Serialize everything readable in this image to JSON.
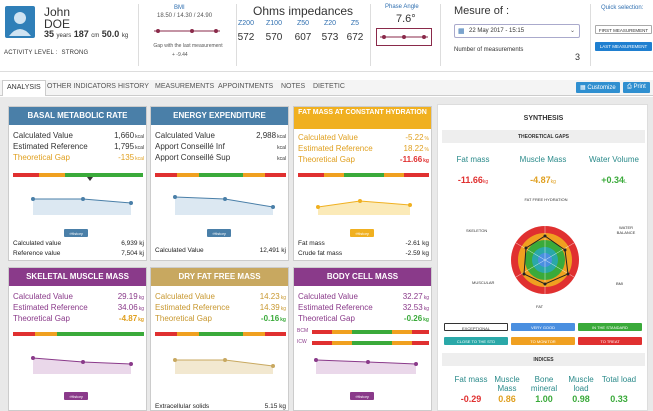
{
  "patient": {
    "first_name": "John",
    "last_name": "DOE",
    "age": "35",
    "age_unit": "years",
    "height": "187",
    "height_unit": "cm",
    "weight": "50.0",
    "weight_unit": "kg",
    "activity_label": "ACTIVITY LEVEL",
    "activity_value": "STRONG"
  },
  "bmi": {
    "label": "BMI",
    "values": "18.50 / 14.30 / 24.90",
    "gap_label": "Gap with the last measurement",
    "gap_value": "+ -9.44"
  },
  "ohms": {
    "title": "Ohms impedances",
    "items": [
      {
        "label": "Z200",
        "value": "572"
      },
      {
        "label": "Z100",
        "value": "570"
      },
      {
        "label": "Z50",
        "value": "607"
      },
      {
        "label": "Z20",
        "value": "573"
      },
      {
        "label": "Z5",
        "value": "672"
      }
    ]
  },
  "phase_angle": {
    "label": "Phase Angle",
    "value": "7.6°"
  },
  "measure": {
    "title": "Mesure of :",
    "date": "22 May 2017 - 15:15",
    "count_label": "Number of measurements",
    "count_value": "3"
  },
  "quick_selection": {
    "label": "Quick selection:",
    "first": "FIRST MEASUREMENT",
    "last": "LAST MEASUREMENT"
  },
  "tabs": [
    "ANALYSIS",
    "OTHER INDICATORS",
    "HISTORY",
    "MEASUREMENTS",
    "APPOINTMENTS",
    "NOTES",
    "DIETETIC"
  ],
  "toolbar": {
    "customize": "Customize",
    "print": "Print"
  },
  "cards": {
    "bmr": {
      "title": "BASAL METABOLIC RATE",
      "rows": [
        {
          "label": "Calculated Value",
          "value": "1,660",
          "unit": "kcal"
        },
        {
          "label": "Estimated Reference",
          "value": "1,795",
          "unit": "kcal"
        },
        {
          "label": "Theoretical Gap",
          "value": "-135",
          "unit": "kcal"
        }
      ],
      "bottom": [
        {
          "label": "Calculated value",
          "value": "6,939",
          "unit": "kj"
        },
        {
          "label": "Reference value",
          "value": "7,504",
          "unit": "kj"
        }
      ],
      "history": "History"
    },
    "ee": {
      "title": "ENERGY EXPENDITURE",
      "rows": [
        {
          "label": "Calculated Value",
          "value": "2,988",
          "unit": "kcal"
        },
        {
          "label": "Apport Conseillé Inf",
          "value": "",
          "unit": "kcal"
        },
        {
          "label": "Apport Conseillé Sup",
          "value": "",
          "unit": "kcal"
        }
      ],
      "bottom": [
        {
          "label": "Calculated Value",
          "value": "12,491",
          "unit": "kj"
        }
      ],
      "history": "History"
    },
    "fm": {
      "title": "FAT MASS AT CONSTANT HYDRATION",
      "rows": [
        {
          "label": "Calculated Value",
          "value": "-5.22",
          "unit": "%"
        },
        {
          "label": "Estimated Reference",
          "value": "18.22",
          "unit": "%"
        },
        {
          "label": "Theoretical Gap",
          "value": "-11.66",
          "unit": "kg"
        }
      ],
      "bottom": [
        {
          "label": "Fat mass",
          "value": "-2.61",
          "unit": "kg"
        },
        {
          "label": "Crude fat mass",
          "value": "-2.59",
          "unit": "kg"
        }
      ],
      "history": "History"
    },
    "smm": {
      "title": "SKELETAL MUSCLE MASS",
      "rows": [
        {
          "label": "Calculated Value",
          "value": "29.19",
          "unit": "kg"
        },
        {
          "label": "Estimated Reference",
          "value": "34.06",
          "unit": "kg"
        },
        {
          "label": "Theoretical Gap",
          "value": "-4.87",
          "unit": "kg"
        }
      ],
      "history": "History"
    },
    "dffm": {
      "title": "DRY FAT FREE MASS",
      "rows": [
        {
          "label": "Calculated Value",
          "value": "14.23",
          "unit": "kg"
        },
        {
          "label": "Estimated Reference",
          "value": "14.39",
          "unit": "kg"
        },
        {
          "label": "Theoretical Gap",
          "value": "-0.16",
          "unit": "kg"
        }
      ],
      "bottom": [
        {
          "label": "Extracellular solids",
          "value": "5.15",
          "unit": "kg"
        }
      ]
    },
    "bcm": {
      "title": "BODY CELL MASS",
      "rows": [
        {
          "label": "Calculated Value",
          "value": "32.27",
          "unit": "kg"
        },
        {
          "label": "Estimated Reference",
          "value": "32.53",
          "unit": "kg"
        },
        {
          "label": "Theoretical Gap",
          "value": "-0.26",
          "unit": "kg"
        }
      ],
      "bar_labels": [
        "BCM",
        "ICW"
      ],
      "history": "History"
    }
  },
  "synthesis": {
    "title": "SYNTHESIS",
    "gaps_title": "THEORETICAL GAPS",
    "gaps": [
      {
        "label": "Fat mass",
        "value": "-11.66",
        "unit": "kg",
        "color": "#e03030"
      },
      {
        "label": "Muscle Mass",
        "value": "-4.87",
        "unit": "kg",
        "color": "#e0a020"
      },
      {
        "label": "Water Volume",
        "value": "+0.34",
        "unit": "L",
        "color": "#3aaa3a"
      }
    ],
    "radar_labels": {
      "top": "FAT FREE HYDRATION",
      "left": "SKELETON",
      "right": "WATER BALANCE",
      "bottom_left": "MUSCULAR",
      "bottom_right": "BMI",
      "bottom": "FAT"
    },
    "legend": [
      {
        "label": "EXCEPTIONAL",
        "color": "#ffffff",
        "text": "#333333"
      },
      {
        "label": "VERY GOOD",
        "color": "#4a8fe0",
        "text": "#ffffff"
      },
      {
        "label": "IN THE STANDARD",
        "color": "#3aaa3a",
        "text": "#ffffff"
      },
      {
        "label": "CLOSE TO THE STD",
        "color": "#2aa8a8",
        "text": "#ffffff"
      },
      {
        "label": "TO MONITOR",
        "color": "#f0a020",
        "text": "#ffffff"
      },
      {
        "label": "TO TREAT",
        "color": "#e03030",
        "text": "#ffffff"
      }
    ],
    "indices_title": "INDICES",
    "indices": [
      {
        "label": "Fat mass",
        "value": "-0.29",
        "color": "#e03030"
      },
      {
        "label": "Muscle Mass",
        "value": "0.86",
        "color": "#e0a020"
      },
      {
        "label": "Bone mineral",
        "value": "1.00",
        "color": "#3aaa3a"
      },
      {
        "label": "Muscle load",
        "value": "0.98",
        "color": "#3aaa3a"
      },
      {
        "label": "Total load",
        "value": "0.33",
        "color": "#3aaa3a"
      }
    ]
  },
  "colors": {
    "bmr": "#4a7fa8",
    "ee": "#4a7fa8",
    "fm": "#f0b020",
    "smm": "#8a3a8a",
    "dffm": "#c8a860",
    "bcm": "#8a3a8a"
  }
}
